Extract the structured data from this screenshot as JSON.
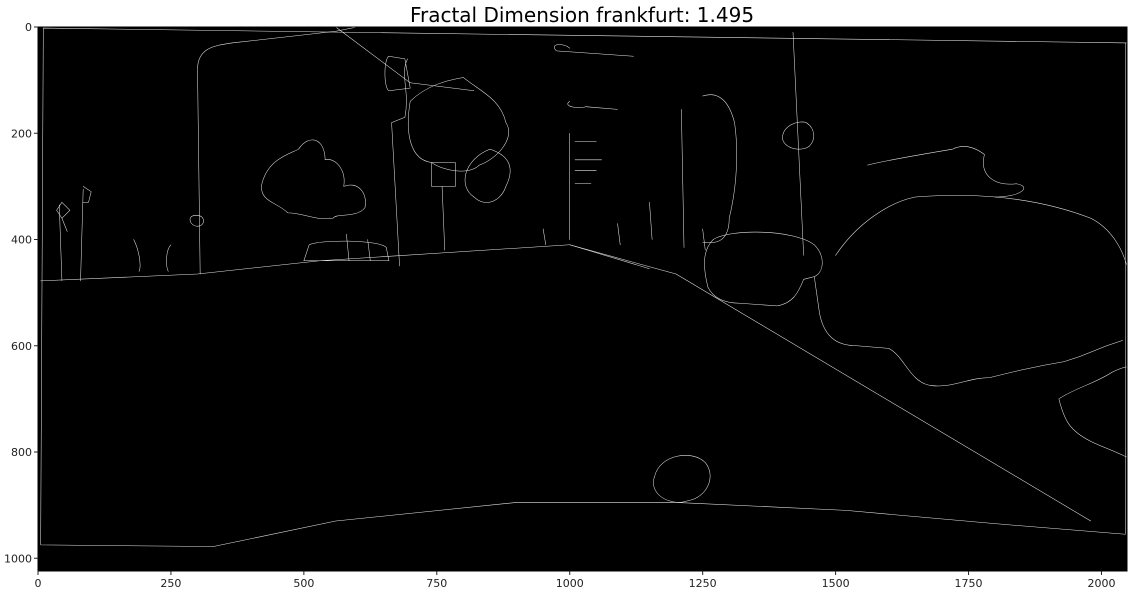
{
  "chart_data": {
    "type": "image",
    "title": "Fractal Dimension frankfurt: 1.495",
    "xlabel": "",
    "ylabel": "",
    "xlim": [
      0,
      2048
    ],
    "ylim": [
      1024,
      0
    ],
    "x_ticks": [
      0,
      250,
      500,
      750,
      1000,
      1250,
      1500,
      1750,
      2000
    ],
    "y_ticks": [
      0,
      200,
      400,
      600,
      800,
      1000
    ],
    "grid": false,
    "image_description": "binary edge map (white Canny-style edges on black) of a street scene"
  },
  "colors": {
    "background": "#000000",
    "edges": "#e6e6e6",
    "axes": "#000000"
  }
}
